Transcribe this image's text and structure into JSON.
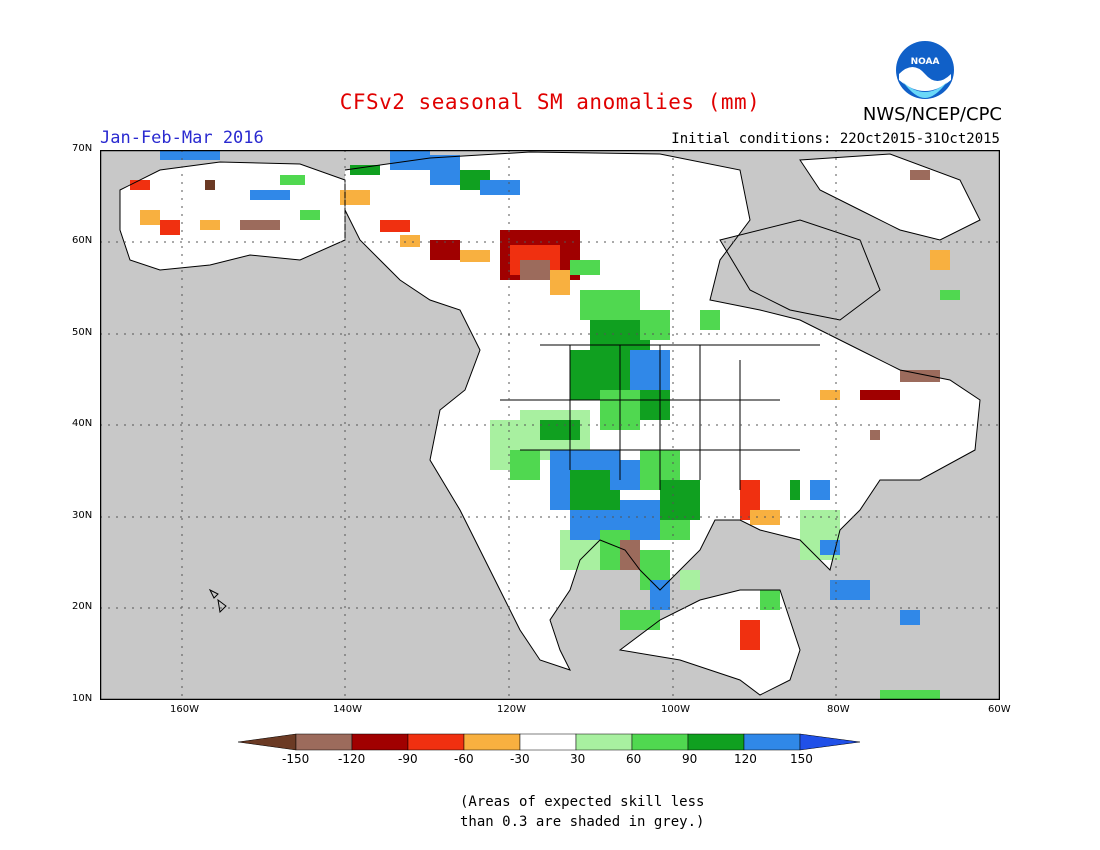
{
  "title": "CFSv2 seasonal SM anomalies (mm)",
  "season": "Jan-Feb-Mar 2016",
  "initial_conditions": "Initial conditions: 22Oct2015-31Oct2015",
  "agency": "NWS/NCEP/CPC",
  "logo_text": "NOAA",
  "lat_labels": [
    "70N",
    "60N",
    "50N",
    "40N",
    "30N",
    "20N",
    "10N"
  ],
  "lon_labels": [
    "160W",
    "140W",
    "120W",
    "100W",
    "80W",
    "60W"
  ],
  "colorbar": {
    "labels": [
      "-150",
      "-120",
      "-90",
      "-60",
      "-30",
      "30",
      "60",
      "90",
      "120",
      "150"
    ],
    "colors": [
      "#6b3a24",
      "#9c6b5c",
      "#a00000",
      "#f03010",
      "#f8b040",
      "#ffffff",
      "#a8f0a0",
      "#50d850",
      "#10a020",
      "#3088e8",
      "#2050e8"
    ]
  },
  "note_line1": "(Areas of expected skill less",
  "note_line2": "than 0.3 are shaded in grey.)",
  "colors": {
    "grey_mask": "#c8c8c8",
    "land_white": "#ffffff",
    "title_red": "#e00000",
    "season_blue": "#2a2ad0"
  }
}
